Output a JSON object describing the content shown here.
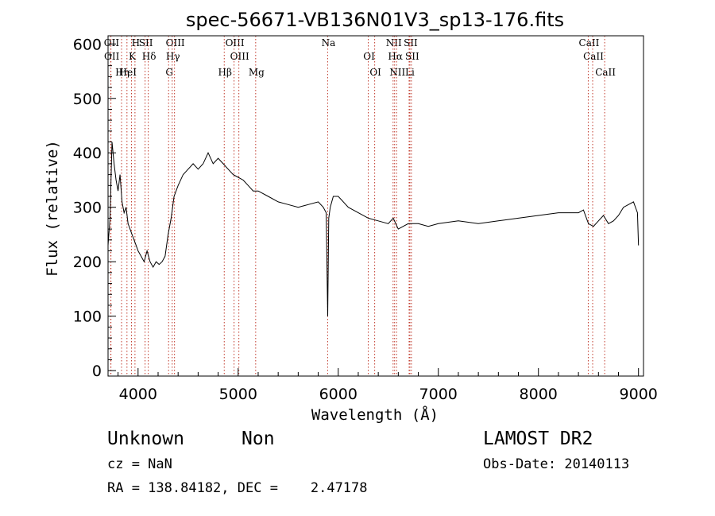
{
  "chart_data": {
    "type": "line",
    "title": "spec-56671-VB136N01V3_sp13-176.fits",
    "xlabel": "Wavelength (Å)",
    "ylabel": "Flux (relative)",
    "xlim": [
      3700,
      9050
    ],
    "ylim": [
      -10,
      615
    ],
    "xticks": [
      4000,
      5000,
      6000,
      7000,
      8000,
      9000
    ],
    "yticks": [
      0,
      100,
      200,
      300,
      400,
      500,
      600
    ],
    "grid": false,
    "color": "#000000",
    "line_marker_color": "#c0392b",
    "series": [
      {
        "x": [
          3700,
          3720,
          3740,
          3760,
          3780,
          3800,
          3820,
          3840,
          3860,
          3880,
          3900,
          3920,
          3940,
          3960,
          3980,
          4000,
          4030,
          4060,
          4090,
          4120,
          4150,
          4180,
          4210,
          4240,
          4270,
          4300,
          4330,
          4360,
          4400,
          4450,
          4500,
          4550,
          4600,
          4650,
          4700,
          4750,
          4800,
          4850,
          4900,
          4950,
          5000,
          5050,
          5100,
          5150,
          5200,
          5300,
          5400,
          5500,
          5600,
          5700,
          5800,
          5850,
          5880,
          5895,
          5905,
          5920,
          5950,
          6000,
          6100,
          6200,
          6300,
          6400,
          6500,
          6550,
          6600,
          6650,
          6700,
          6800,
          6900,
          7000,
          7200,
          7400,
          7600,
          7800,
          8000,
          8200,
          8400,
          8450,
          8500,
          8550,
          8600,
          8650,
          8700,
          8750,
          8800,
          8850,
          8900,
          8950,
          8990,
          9000
        ],
        "y": [
          230,
          280,
          420,
          380,
          350,
          330,
          360,
          310,
          290,
          300,
          270,
          260,
          250,
          240,
          230,
          220,
          210,
          200,
          220,
          200,
          190,
          200,
          195,
          200,
          210,
          250,
          280,
          320,
          340,
          360,
          370,
          380,
          370,
          380,
          400,
          380,
          390,
          380,
          370,
          360,
          355,
          350,
          340,
          330,
          330,
          320,
          310,
          305,
          300,
          305,
          310,
          300,
          290,
          100,
          280,
          300,
          320,
          320,
          300,
          290,
          280,
          275,
          270,
          280,
          260,
          265,
          270,
          270,
          265,
          270,
          275,
          270,
          275,
          280,
          285,
          290,
          290,
          295,
          270,
          265,
          275,
          285,
          270,
          275,
          285,
          300,
          305,
          310,
          290,
          230
        ]
      }
    ],
    "line_ids": [
      {
        "label": "OII",
        "wavelength": 3727
      },
      {
        "label": "OII",
        "wavelength": 3729
      },
      {
        "label": "Hη",
        "wavelength": 3835
      },
      {
        "label": "H",
        "wavelength": 3969
      },
      {
        "label": "K",
        "wavelength": 3934
      },
      {
        "label": "HeI",
        "wavelength": 3889
      },
      {
        "label": "SII",
        "wavelength": 4070
      },
      {
        "label": "Hδ",
        "wavelength": 4102
      },
      {
        "label": "G",
        "wavelength": 4305
      },
      {
        "label": "OIII",
        "wavelength": 4364
      },
      {
        "label": "Hγ",
        "wavelength": 4341
      },
      {
        "label": "Hβ",
        "wavelength": 4861
      },
      {
        "label": "OIII",
        "wavelength": 4959
      },
      {
        "label": "OIII",
        "wavelength": 5007
      },
      {
        "label": "Mg",
        "wavelength": 5175
      },
      {
        "label": "Na",
        "wavelength": 5894
      },
      {
        "label": "OI",
        "wavelength": 6300
      },
      {
        "label": "OI",
        "wavelength": 6364
      },
      {
        "label": "NII",
        "wavelength": 6548
      },
      {
        "label": "Hα",
        "wavelength": 6563
      },
      {
        "label": "NII",
        "wavelength": 6583
      },
      {
        "label": "SII",
        "wavelength": 6716
      },
      {
        "label": "SII",
        "wavelength": 6731
      },
      {
        "label": "Li",
        "wavelength": 6708
      },
      {
        "label": "CaII",
        "wavelength": 8498
      },
      {
        "label": "CaII",
        "wavelength": 8542
      },
      {
        "label": "CaII",
        "wavelength": 8662
      }
    ]
  },
  "info": {
    "object_class": "Unknown",
    "subclass": "Non",
    "survey": "LAMOST DR2",
    "cz": "cz = NaN",
    "obs_date": "Obs-Date: 20140113",
    "coords": "RA = 138.84182, DEC =    2.47178"
  }
}
